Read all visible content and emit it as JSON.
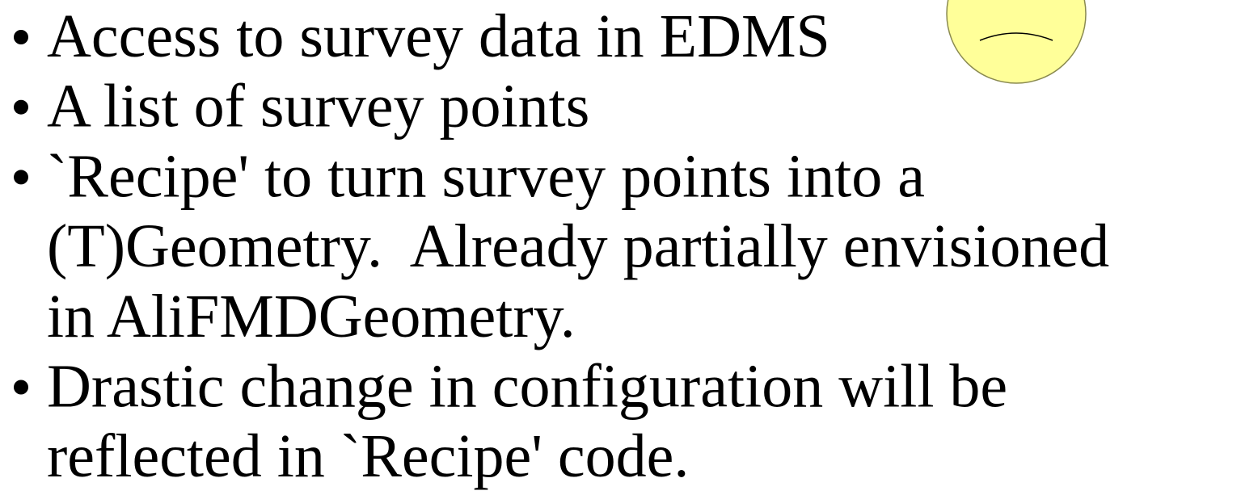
{
  "bullets": [
    {
      "lines": [
        "Access to survey data in EDMS"
      ]
    },
    {
      "lines": [
        "A list of survey points"
      ]
    },
    {
      "lines": [
        "`Recipe' to turn survey points into a",
        "(T)Geometry.  Already partially envisioned",
        "in AliFMDGeometry."
      ]
    },
    {
      "lines": [
        "Drastic change in configuration will be",
        "reflected in `Recipe' code."
      ]
    }
  ]
}
